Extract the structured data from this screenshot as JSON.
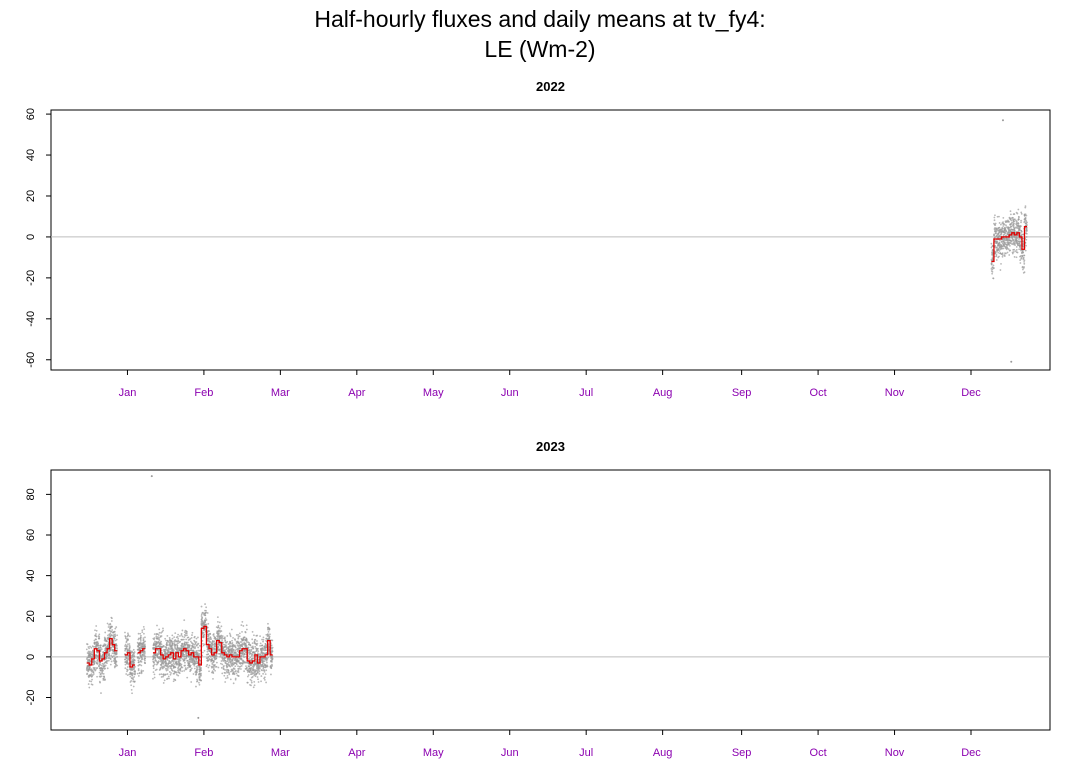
{
  "page": {
    "title_line1": "Half-hourly fluxes and daily means at tv_fy4:",
    "title_line2": "LE (Wm-2)"
  },
  "chart_data": [
    {
      "type": "scatter",
      "title": "2022",
      "xlabel": "",
      "ylabel": "",
      "x_tick_labels": [
        "Jan",
        "Feb",
        "Mar",
        "Apr",
        "May",
        "Jun",
        "Jul",
        "Aug",
        "Sep",
        "Oct",
        "Nov",
        "Dec"
      ],
      "x_tick_doy": [
        18,
        48,
        78,
        108,
        138,
        168,
        198,
        228,
        259,
        289,
        319,
        349
      ],
      "xlim_doy": [
        -12,
        380
      ],
      "ylim": [
        -65,
        62
      ],
      "y_ticks": [
        -60,
        -40,
        -20,
        0,
        20,
        40,
        60
      ],
      "zero_line": 0,
      "series": [
        {
          "style": "half-hourly points (grey)",
          "x_doy_range": [
            357,
            370
          ],
          "values_summary": {
            "typical_min": -33,
            "typical_max": 31,
            "min": -61,
            "max": 57
          }
        },
        {
          "style": "daily mean step line (red)",
          "x_doy": [
            357,
            358,
            359,
            360,
            361,
            362,
            363,
            364,
            365,
            366,
            367,
            368,
            369,
            370
          ],
          "values": [
            -12,
            -1,
            -1,
            -1,
            0,
            0,
            0,
            1,
            2,
            1,
            2,
            0,
            -6,
            5
          ]
        }
      ]
    },
    {
      "type": "scatter",
      "title": "2023",
      "xlabel": "",
      "ylabel": "",
      "x_tick_labels": [
        "Jan",
        "Feb",
        "Mar",
        "Apr",
        "May",
        "Jun",
        "Jul",
        "Aug",
        "Sep",
        "Oct",
        "Nov",
        "Dec"
      ],
      "x_tick_doy": [
        18,
        48,
        78,
        108,
        138,
        168,
        198,
        228,
        259,
        289,
        319,
        349
      ],
      "xlim_doy": [
        -12,
        380
      ],
      "ylim": [
        -36,
        92
      ],
      "y_ticks": [
        -20,
        0,
        20,
        40,
        60,
        80
      ],
      "zero_line": 0,
      "series": [
        {
          "style": "half-hourly points (grey)",
          "x_doy_range": [
            2,
            75
          ],
          "values_summary": {
            "typical_min": -25,
            "typical_max": 26,
            "min": -30,
            "max": 89
          }
        },
        {
          "style": "daily mean step line (red)",
          "x_doy": [
            2,
            3,
            4,
            5,
            6,
            7,
            8,
            9,
            10,
            11,
            12,
            13,
            17,
            18,
            19,
            20,
            22,
            23,
            24,
            28,
            29,
            30,
            31,
            32,
            33,
            34,
            35,
            36,
            37,
            38,
            39,
            40,
            41,
            42,
            43,
            44,
            45,
            46,
            47,
            48,
            49,
            50,
            51,
            52,
            53,
            54,
            55,
            56,
            57,
            58,
            59,
            60,
            61,
            62,
            63,
            64,
            65,
            66,
            67,
            68,
            69,
            70,
            71,
            72,
            73,
            74
          ],
          "values": [
            -3,
            -4,
            -1,
            4,
            3,
            -2,
            -1,
            2,
            4,
            9,
            6,
            3,
            1,
            2,
            -5,
            -4,
            2,
            3,
            4,
            2,
            4,
            4,
            1,
            -1,
            0,
            1,
            2,
            -1,
            2,
            0,
            3,
            4,
            3,
            1,
            2,
            0,
            0,
            -4,
            14,
            15,
            6,
            4,
            1,
            2,
            8,
            7,
            2,
            1,
            0,
            1,
            0,
            0,
            0,
            3,
            4,
            4,
            -2,
            -3,
            -2,
            1,
            -3,
            0,
            0,
            1,
            8,
            1
          ]
        }
      ]
    }
  ]
}
